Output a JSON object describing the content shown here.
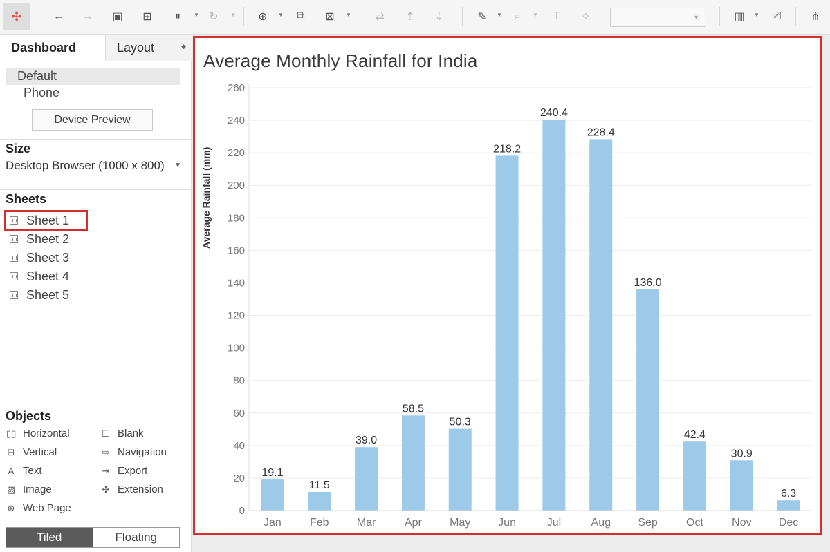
{
  "left_panel": {
    "tabs": {
      "dashboard": "Dashboard",
      "layout": "Layout"
    },
    "devices": {
      "default": "Default",
      "phone": "Phone"
    },
    "device_preview": "Device Preview",
    "size": {
      "title": "Size",
      "value": "Desktop Browser (1000 x 800)"
    },
    "sheets": {
      "title": "Sheets",
      "items": [
        "Sheet 1",
        "Sheet 2",
        "Sheet 3",
        "Sheet 4",
        "Sheet 5"
      ],
      "highlighted": "Sheet 1"
    },
    "objects": {
      "title": "Objects",
      "items": [
        {
          "label": "Horizontal",
          "icon": "horizontal-icon"
        },
        {
          "label": "Blank",
          "icon": "blank-icon"
        },
        {
          "label": "Vertical",
          "icon": "vertical-icon"
        },
        {
          "label": "Navigation",
          "icon": "navigation-icon"
        },
        {
          "label": "Text",
          "icon": "text-icon"
        },
        {
          "label": "Export",
          "icon": "export-icon"
        },
        {
          "label": "Image",
          "icon": "image-icon"
        },
        {
          "label": "Extension",
          "icon": "extension-icon"
        },
        {
          "label": "Web Page",
          "icon": "web-page-icon"
        }
      ]
    },
    "layout_mode": {
      "tiled": "Tiled",
      "floating": "Floating",
      "selected": "Tiled"
    }
  },
  "toolbar": {
    "icons": [
      "tableau-logo-icon",
      "undo-icon",
      "redo-icon",
      "save-icon",
      "new-data-source-icon",
      "pause-updates-icon",
      "refresh-icon",
      "new-worksheet-icon",
      "duplicate-icon",
      "clear-icon",
      "swap-icon",
      "sort-ascending-icon",
      "sort-descending-icon",
      "highlight-icon",
      "group-icon",
      "labels-icon",
      "fix-axes-icon",
      "show-me-icon",
      "presentation-icon",
      "share-icon"
    ]
  },
  "colors": {
    "bar": "#9ecae9",
    "highlight_border": "#d32f2f",
    "tiled_bg": "#5b5b5b"
  },
  "chart_data": {
    "type": "bar",
    "title": "Average Monthly Rainfall for India",
    "xlabel": "",
    "ylabel": "Average Rainfall (mm)",
    "ylim": [
      0,
      260
    ],
    "yticks": [
      0,
      20,
      40,
      60,
      80,
      100,
      120,
      140,
      160,
      180,
      200,
      220,
      240,
      260
    ],
    "grid": true,
    "categories": [
      "Jan",
      "Feb",
      "Mar",
      "Apr",
      "May",
      "Jun",
      "Jul",
      "Aug",
      "Sep",
      "Oct",
      "Nov",
      "Dec"
    ],
    "values": [
      19.1,
      11.5,
      39.0,
      58.5,
      50.3,
      218.2,
      240.4,
      228.4,
      136.0,
      42.4,
      30.9,
      6.3
    ],
    "data_labels": [
      "19.1",
      "11.5",
      "39.0",
      "58.5",
      "50.3",
      "218.2",
      "240.4",
      "228.4",
      "136.0",
      "42.4",
      "30.9",
      "6.3"
    ]
  }
}
